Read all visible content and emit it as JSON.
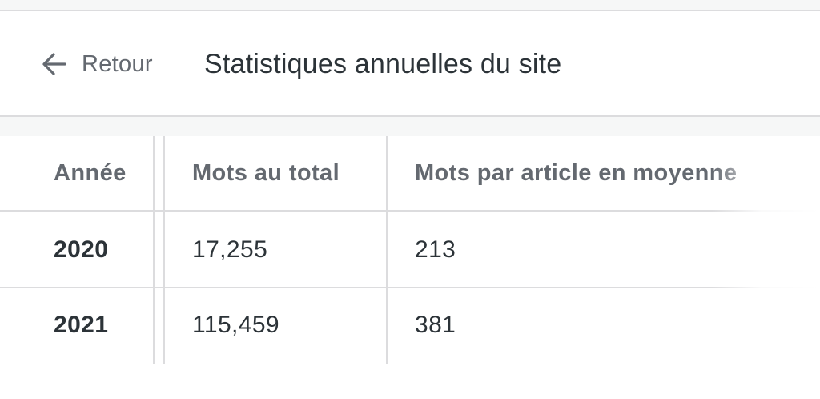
{
  "header": {
    "back_label": "Retour",
    "back_icon": "arrow-left-icon",
    "title": "Statistiques annuelles du site"
  },
  "table": {
    "columns": [
      "Année",
      "Mots au total",
      "Mots par article en moyenne"
    ],
    "rows": [
      {
        "year": "2020",
        "total_words": "17,255",
        "avg_words": "213"
      },
      {
        "year": "2021",
        "total_words": "115,459",
        "avg_words": "381"
      }
    ]
  },
  "colors": {
    "text_primary": "#2c3338",
    "text_secondary": "#646970",
    "border": "#dcdcde",
    "background_strip": "#f6f7f7"
  }
}
